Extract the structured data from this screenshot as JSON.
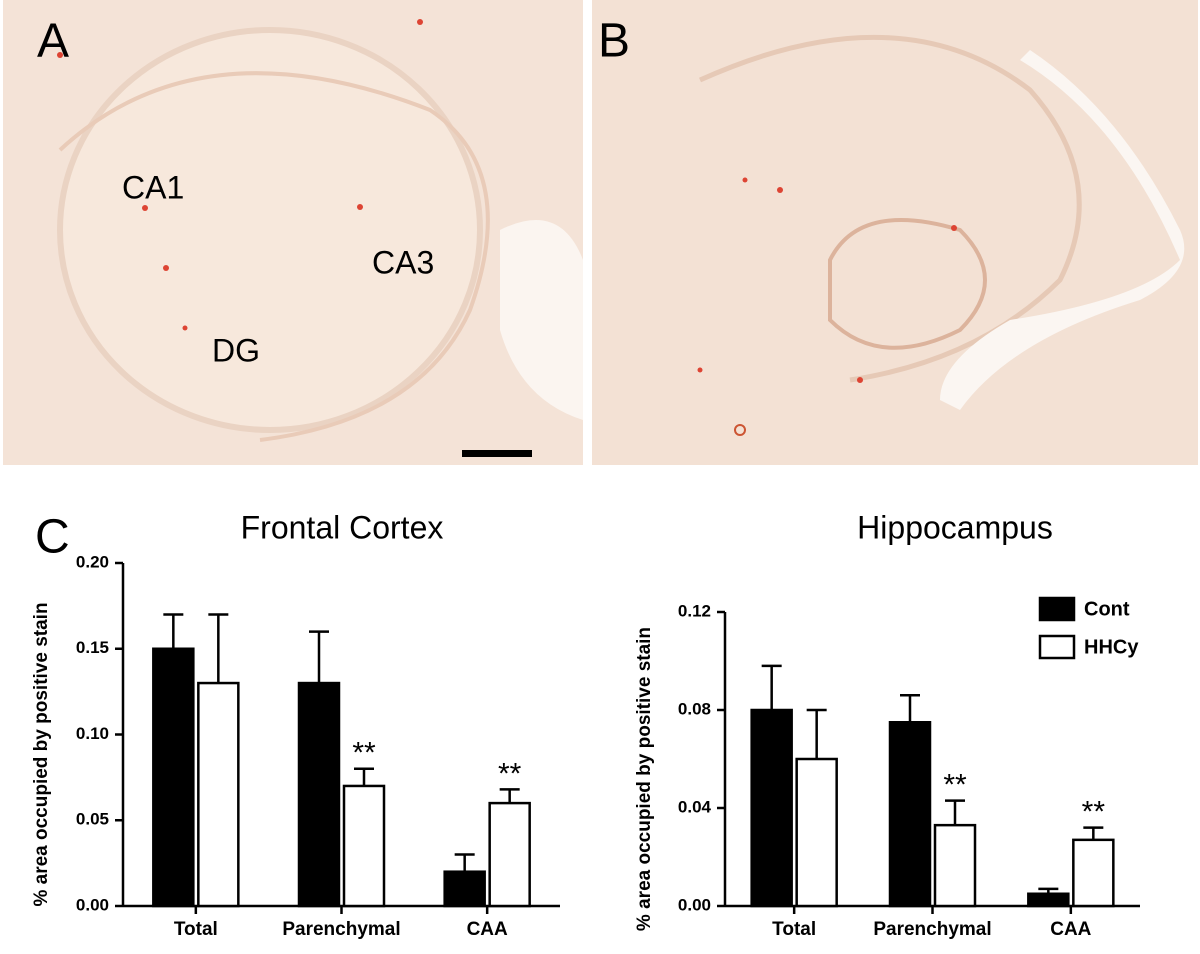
{
  "figure": {
    "panels": [
      {
        "label": "A",
        "regions": [
          "CA1",
          "CA3",
          "DG"
        ]
      },
      {
        "label": "B"
      },
      {
        "label": "C"
      }
    ]
  },
  "chart_data": [
    {
      "type": "bar",
      "title": "Frontal Cortex",
      "y_label": "% area occupied by positive stain",
      "categories": [
        "Total",
        "Parenchymal",
        "CAA"
      ],
      "series": [
        {
          "color": "#000000",
          "values": [
            0.15,
            0.13,
            0.02
          ],
          "errors": [
            0.02,
            0.03,
            0.01
          ]
        },
        {
          "color": "#ffffff",
          "values": [
            0.13,
            0.07,
            0.06
          ],
          "errors": [
            0.04,
            0.01,
            0.008
          ],
          "value_annotations": [
            null,
            "**",
            "**"
          ]
        }
      ],
      "ylim": [
        0,
        0.2
      ],
      "yticks": [
        {
          "value": 0,
          "label": "0.00"
        },
        {
          "value": 0.05,
          "label": "0.05"
        },
        {
          "value": 0.1,
          "label": "0.10"
        },
        {
          "value": 0.15,
          "label": "0.15"
        },
        {
          "value": 0.2,
          "label": "0.20"
        }
      ],
      "legend": false
    },
    {
      "type": "bar",
      "title": "Hippocampus",
      "y_label": "% area occupied by positive stain",
      "categories": [
        "Total",
        "Parenchymal",
        "CAA"
      ],
      "series": [
        {
          "name": "Cont",
          "color": "#000000",
          "values": [
            0.08,
            0.075,
            0.005
          ],
          "errors": [
            0.018,
            0.011,
            0.002
          ]
        },
        {
          "name": "HHCy",
          "color": "#ffffff",
          "values": [
            0.06,
            0.033,
            0.027
          ],
          "errors": [
            0.02,
            0.01,
            0.005
          ],
          "value_annotations": [
            null,
            "**",
            "**"
          ]
        }
      ],
      "ylim": [
        0,
        0.12
      ],
      "yticks": [
        {
          "value": 0,
          "label": "0.00"
        },
        {
          "value": 0.04,
          "label": "0.04"
        },
        {
          "value": 0.08,
          "label": "0.08"
        },
        {
          "value": 0.12,
          "label": "0.12"
        }
      ],
      "legend": true,
      "legend_position": "upper right"
    }
  ]
}
